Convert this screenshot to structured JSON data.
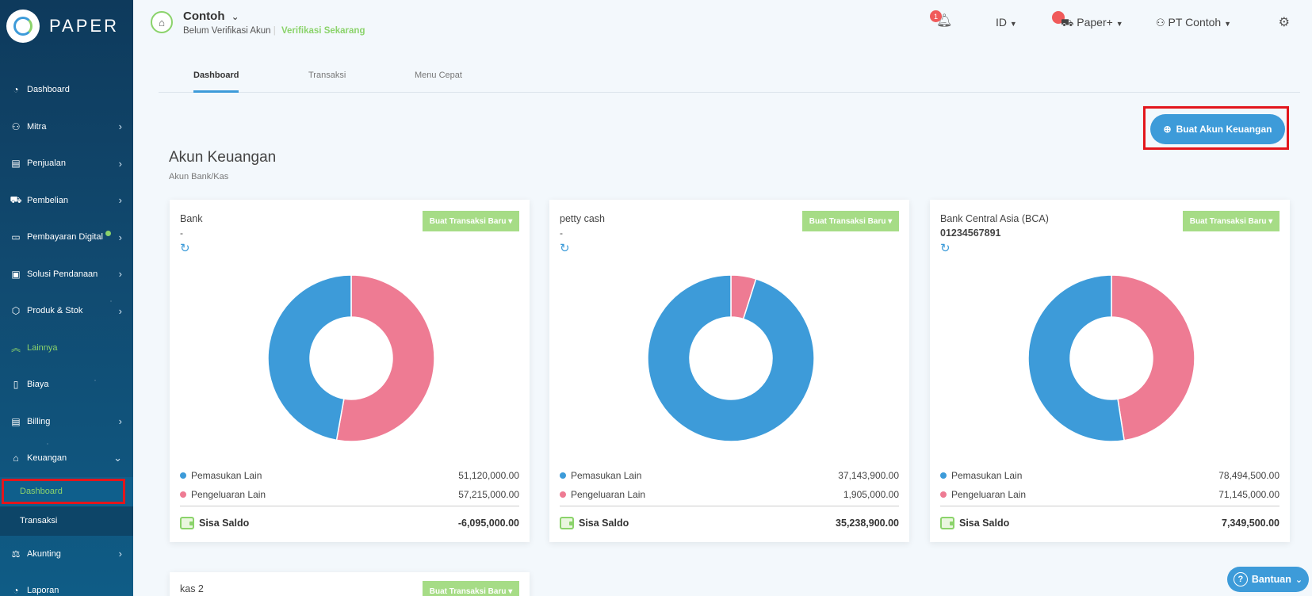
{
  "brand": {
    "name": "PAPER"
  },
  "sidebar": {
    "items": [
      {
        "label": "Dashboard",
        "icon": "dashboard-icon",
        "chevron": false
      },
      {
        "label": "Mitra",
        "icon": "users-icon",
        "chevron": true
      },
      {
        "label": "Penjualan",
        "icon": "invoice-icon",
        "chevron": true
      },
      {
        "label": "Pembelian",
        "icon": "cart-icon",
        "chevron": true
      },
      {
        "label": "Pembayaran Digital",
        "icon": "card-icon",
        "chevron": true
      },
      {
        "label": "Solusi Pendanaan",
        "icon": "funding-icon",
        "chevron": true
      },
      {
        "label": "Produk & Stok",
        "icon": "box-icon",
        "chevron": true
      },
      {
        "label": "Lainnya",
        "icon": "chevrons-up-icon",
        "chevron": false
      },
      {
        "label": "Biaya",
        "icon": "receipt-icon",
        "chevron": false
      },
      {
        "label": "Billing",
        "icon": "billing-icon",
        "chevron": true
      },
      {
        "label": "Keuangan",
        "icon": "bank-icon",
        "chevron": true
      },
      {
        "label": "Akunting",
        "icon": "scale-icon",
        "chevron": true
      },
      {
        "label": "Laporan",
        "icon": "pie-icon",
        "chevron": false
      }
    ],
    "keuangan_sub": [
      {
        "label": "Dashboard"
      },
      {
        "label": "Transaksi"
      }
    ]
  },
  "header": {
    "company": "Contoh",
    "status": "Belum Verifikasi Akun",
    "verify_link": "Verifikasi Sekarang",
    "notif_count": "1",
    "lang": "ID",
    "paperplus": "Paper+",
    "user": "PT Contoh"
  },
  "tabs": [
    {
      "label": "Dashboard"
    },
    {
      "label": "Transaksi"
    },
    {
      "label": "Menu Cepat"
    }
  ],
  "create_button": "Buat Akun Keuangan",
  "section": {
    "title": "Akun Keuangan",
    "subtitle": "Akun Bank/Kas"
  },
  "colors": {
    "income": "#3d9bd9",
    "expense": "#ee7b93",
    "accent_green": "#8bd36b"
  },
  "labels": {
    "new_tx": "Buat Transaksi Baru",
    "income": "Pemasukan Lain",
    "expense": "Pengeluaran Lain",
    "saldo": "Sisa Saldo"
  },
  "accounts": [
    {
      "name": "Bank",
      "number": "-",
      "income": "51,120,000.00",
      "expense": "57,215,000.00",
      "saldo": "-6,095,000.00"
    },
    {
      "name": "petty cash",
      "number": "-",
      "income": "37,143,900.00",
      "expense": "1,905,000.00",
      "saldo": "35,238,900.00"
    },
    {
      "name": "Bank Central Asia (BCA)",
      "number": "01234567891",
      "income": "78,494,500.00",
      "expense": "71,145,000.00",
      "saldo": "7,349,500.00"
    },
    {
      "name": "kas 2"
    }
  ],
  "chart_data": [
    {
      "type": "pie",
      "categories": [
        "Pemasukan Lain",
        "Pengeluaran Lain"
      ],
      "values": [
        51120000,
        57215000
      ]
    },
    {
      "type": "pie",
      "categories": [
        "Pemasukan Lain",
        "Pengeluaran Lain"
      ],
      "values": [
        37143900,
        1905000
      ]
    },
    {
      "type": "pie",
      "categories": [
        "Pemasukan Lain",
        "Pengeluaran Lain"
      ],
      "values": [
        78494500,
        71145000
      ]
    }
  ],
  "help": "Bantuan"
}
